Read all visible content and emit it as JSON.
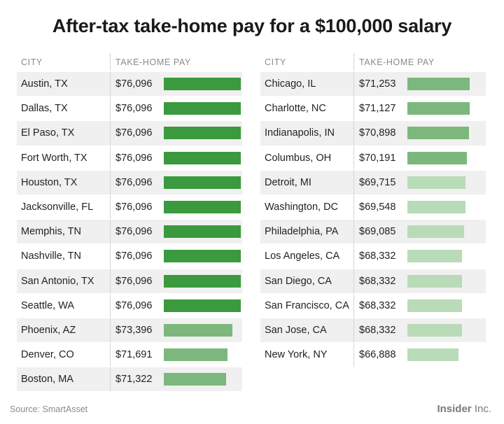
{
  "title": "After-tax take-home pay for a $100,000 salary",
  "columns": {
    "city": "CITY",
    "pay": "TAKE-HOME PAY"
  },
  "source": "Source: SmartAsset",
  "brand": {
    "name": "Insider",
    "suffix": "Inc."
  },
  "colors": {
    "dark_green": "#3a9a3d",
    "mid_green": "#7cb87e",
    "light_green": "#b9dbb7"
  },
  "chart_data": {
    "type": "table",
    "title": "After-tax take-home pay for a $100,000 salary",
    "columns": [
      "CITY",
      "TAKE-HOME PAY"
    ],
    "tables": [
      {
        "rows": [
          {
            "city": "Austin, TX",
            "pay": "$76,096",
            "value": 76096,
            "tier": "dark"
          },
          {
            "city": "Dallas, TX",
            "pay": "$76,096",
            "value": 76096,
            "tier": "dark"
          },
          {
            "city": "El Paso, TX",
            "pay": "$76,096",
            "value": 76096,
            "tier": "dark"
          },
          {
            "city": "Fort Worth, TX",
            "pay": "$76,096",
            "value": 76096,
            "tier": "dark"
          },
          {
            "city": "Houston, TX",
            "pay": "$76,096",
            "value": 76096,
            "tier": "dark"
          },
          {
            "city": "Jacksonville, FL",
            "pay": "$76,096",
            "value": 76096,
            "tier": "dark"
          },
          {
            "city": "Memphis, TN",
            "pay": "$76,096",
            "value": 76096,
            "tier": "dark"
          },
          {
            "city": "Nashville, TN",
            "pay": "$76,096",
            "value": 76096,
            "tier": "dark"
          },
          {
            "city": "San Antonio, TX",
            "pay": "$76,096",
            "value": 76096,
            "tier": "dark"
          },
          {
            "city": "Seattle, WA",
            "pay": "$76,096",
            "value": 76096,
            "tier": "dark"
          },
          {
            "city": "Phoenix, AZ",
            "pay": "$73,396",
            "value": 73396,
            "tier": "mid"
          },
          {
            "city": "Denver, CO",
            "pay": "$71,691",
            "value": 71691,
            "tier": "mid"
          },
          {
            "city": "Boston, MA",
            "pay": "$71,322",
            "value": 71322,
            "tier": "mid"
          }
        ]
      },
      {
        "rows": [
          {
            "city": "Chicago, IL",
            "pay": "$71,253",
            "value": 71253,
            "tier": "mid"
          },
          {
            "city": "Charlotte, NC",
            "pay": "$71,127",
            "value": 71127,
            "tier": "mid"
          },
          {
            "city": "Indianapolis, IN",
            "pay": "$70,898",
            "value": 70898,
            "tier": "mid"
          },
          {
            "city": "Columbus, OH",
            "pay": "$70,191",
            "value": 70191,
            "tier": "mid"
          },
          {
            "city": "Detroit, MI",
            "pay": "$69,715",
            "value": 69715,
            "tier": "light"
          },
          {
            "city": "Washington, DC",
            "pay": "$69,548",
            "value": 69548,
            "tier": "light"
          },
          {
            "city": "Philadelphia, PA",
            "pay": "$69,085",
            "value": 69085,
            "tier": "light"
          },
          {
            "city": "Los Angeles, CA",
            "pay": "$68,332",
            "value": 68332,
            "tier": "light"
          },
          {
            "city": "San Diego, CA",
            "pay": "$68,332",
            "value": 68332,
            "tier": "light"
          },
          {
            "city": "San Francisco, CA",
            "pay": "$68,332",
            "value": 68332,
            "tier": "light"
          },
          {
            "city": "San Jose, CA",
            "pay": "$68,332",
            "value": 68332,
            "tier": "light"
          },
          {
            "city": "New York, NY",
            "pay": "$66,888",
            "value": 66888,
            "tier": "light"
          }
        ]
      }
    ]
  }
}
